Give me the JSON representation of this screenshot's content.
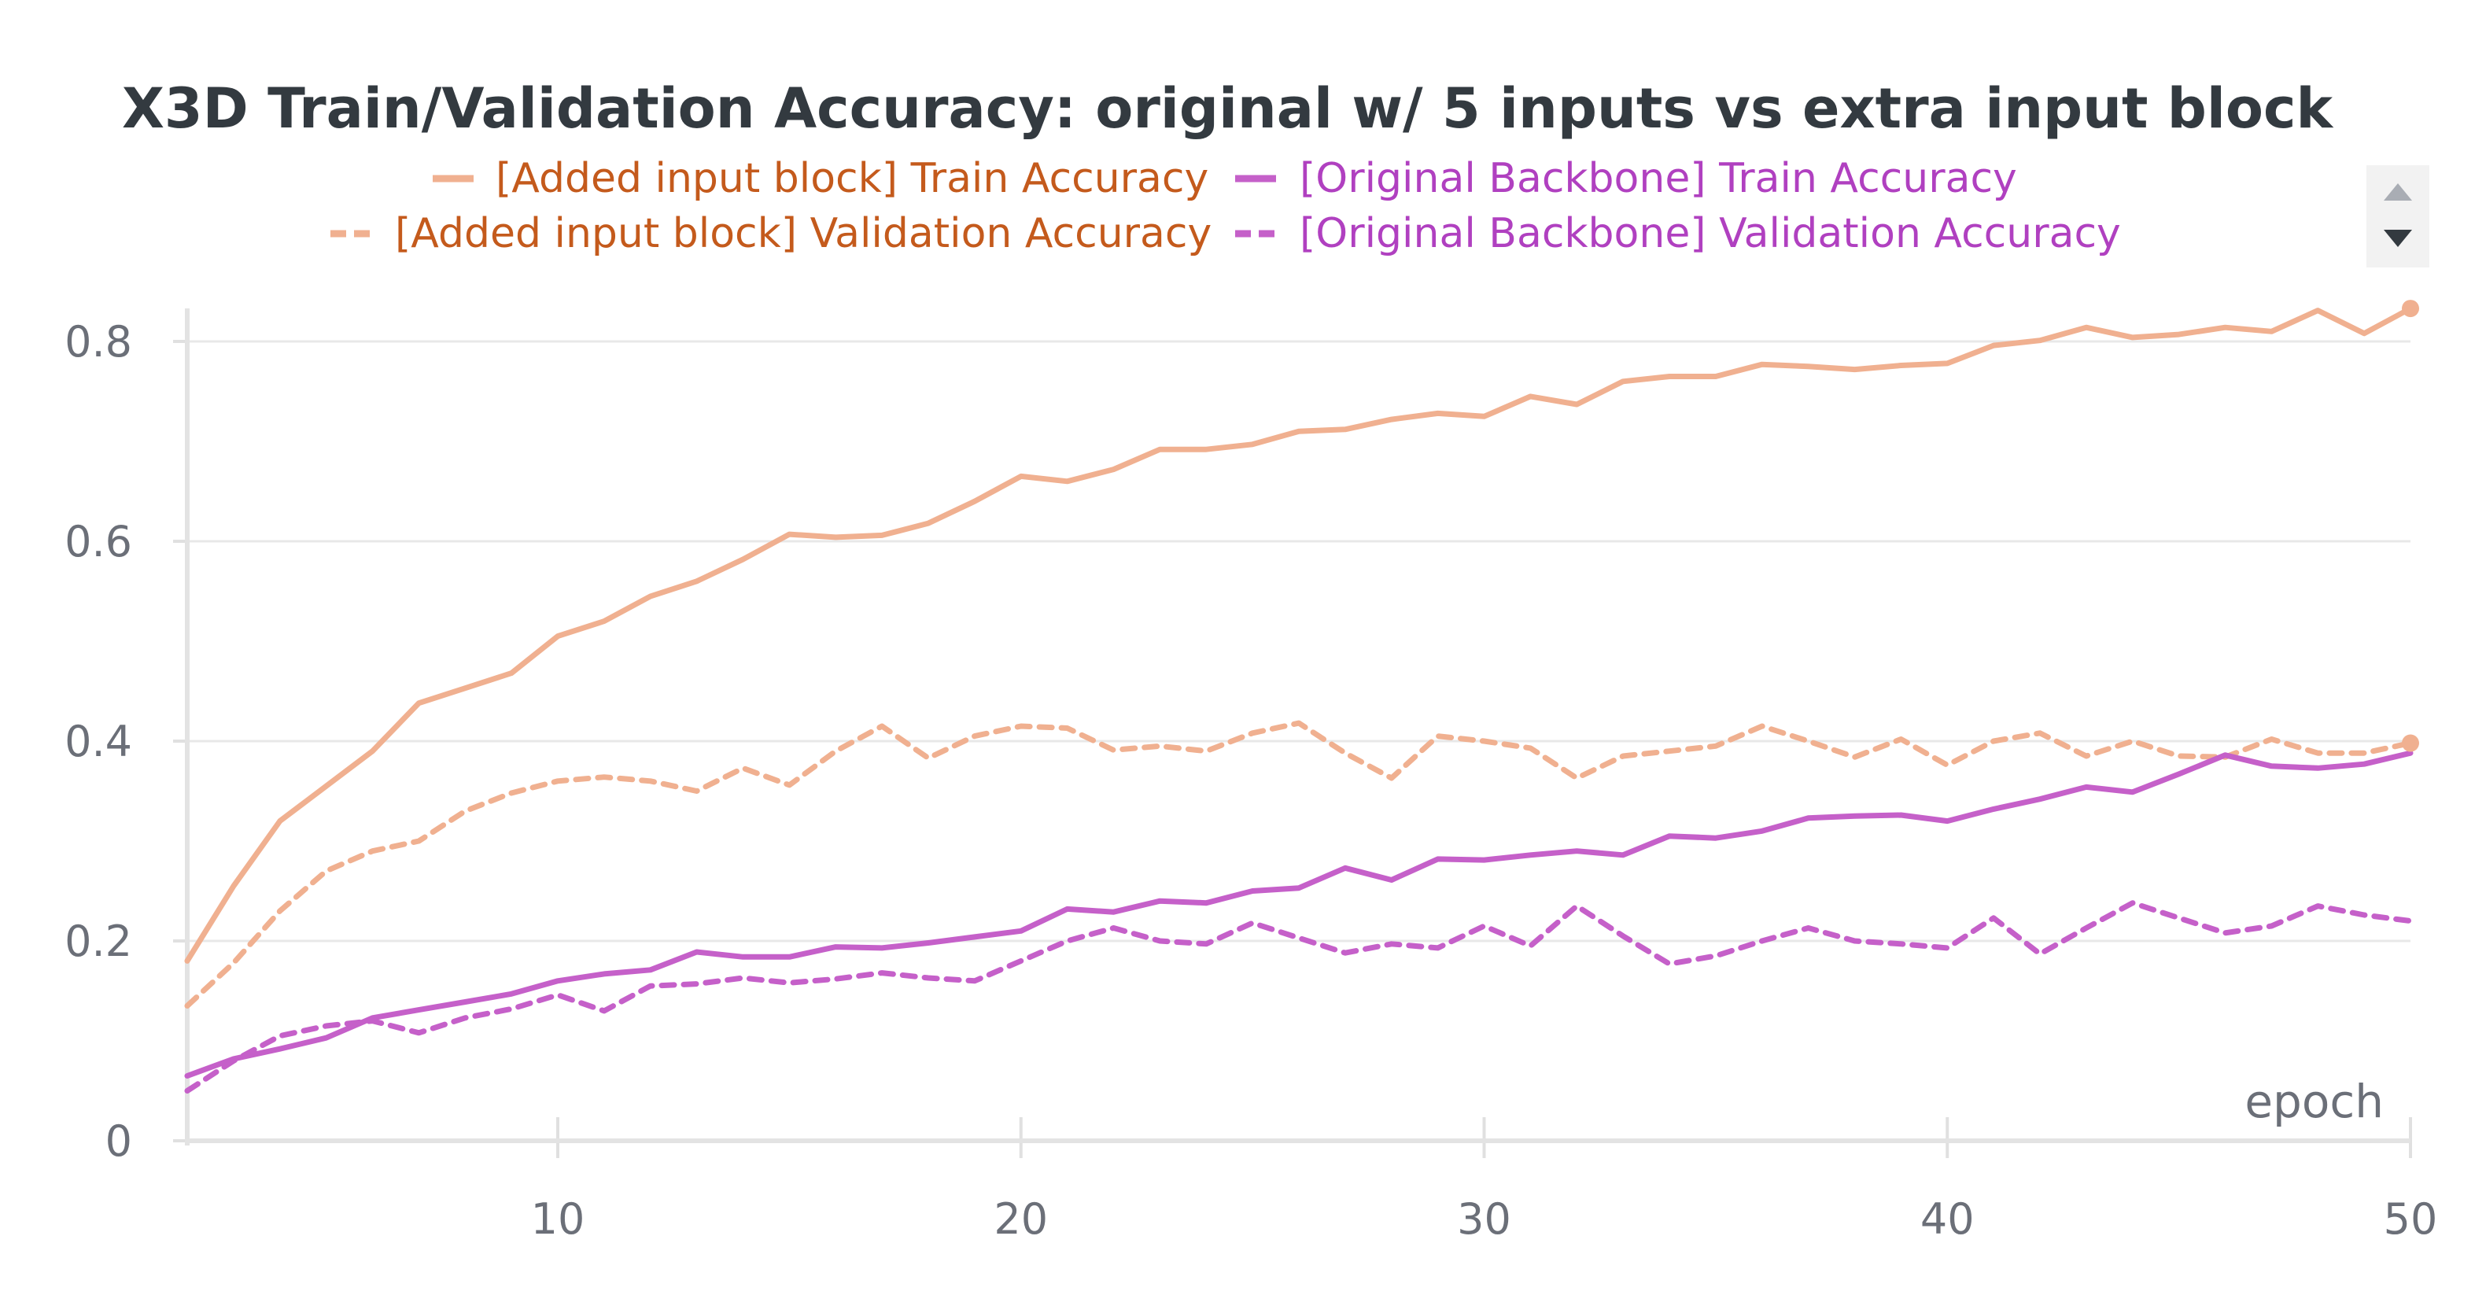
{
  "chart_data": {
    "type": "line",
    "title": "X3D Train/Validation Accuracy: original w/ 5 inputs vs extra input block",
    "xlabel": "epoch",
    "ylabel": "",
    "xlim": [
      2,
      50
    ],
    "ylim": [
      0,
      0.8
    ],
    "x_ticks": [
      "10",
      "20",
      "30",
      "40",
      "50"
    ],
    "y_ticks": [
      "0",
      "0.2",
      "0.4",
      "0.6",
      "0.8"
    ],
    "grid": true,
    "legend_position": "top",
    "x": [
      2,
      3,
      4,
      5,
      6,
      7,
      8,
      9,
      10,
      11,
      12,
      13,
      14,
      15,
      16,
      17,
      18,
      19,
      20,
      21,
      22,
      23,
      24,
      25,
      26,
      27,
      28,
      29,
      30,
      31,
      32,
      33,
      34,
      35,
      36,
      37,
      38,
      39,
      40,
      41,
      42,
      43,
      44,
      45,
      46,
      47,
      48,
      49,
      50
    ],
    "series": [
      {
        "name": "[Added input block] Train Accuracy",
        "color": "#f0b090",
        "text_color": "#c45a1c",
        "dash": false,
        "values": [
          0.18,
          0.255,
          0.32,
          0.355,
          0.39,
          0.438,
          0.453,
          0.468,
          0.505,
          0.52,
          0.545,
          0.56,
          0.582,
          0.607,
          0.604,
          0.606,
          0.618,
          0.64,
          0.665,
          0.66,
          0.672,
          0.692,
          0.692,
          0.697,
          0.71,
          0.712,
          0.722,
          0.728,
          0.725,
          0.745,
          0.737,
          0.76,
          0.765,
          0.765,
          0.777,
          0.775,
          0.772,
          0.776,
          0.778,
          0.796,
          0.801,
          0.814,
          0.804,
          0.807,
          0.814,
          0.81,
          0.831,
          0.808,
          0.833
        ]
      },
      {
        "name": "[Added input block] Validation Accuracy",
        "color": "#f0b090",
        "text_color": "#c45a1c",
        "dash": true,
        "values": [
          0.135,
          0.178,
          0.23,
          0.27,
          0.29,
          0.3,
          0.33,
          0.348,
          0.36,
          0.364,
          0.36,
          0.35,
          0.373,
          0.356,
          0.39,
          0.415,
          0.383,
          0.405,
          0.415,
          0.413,
          0.391,
          0.395,
          0.39,
          0.408,
          0.418,
          0.388,
          0.363,
          0.405,
          0.4,
          0.393,
          0.363,
          0.385,
          0.39,
          0.395,
          0.415,
          0.4,
          0.384,
          0.402,
          0.376,
          0.4,
          0.408,
          0.385,
          0.4,
          0.385,
          0.384,
          0.402,
          0.388,
          0.388,
          0.398
        ]
      },
      {
        "name": "[Original Backbone] Train Accuracy",
        "color": "#c560c9",
        "text_color": "#b040c0",
        "dash": false,
        "values": [
          0.065,
          0.082,
          0.092,
          0.103,
          0.123,
          0.131,
          0.139,
          0.147,
          0.16,
          0.167,
          0.171,
          0.189,
          0.184,
          0.184,
          0.194,
          0.193,
          0.198,
          0.204,
          0.21,
          0.232,
          0.229,
          0.24,
          0.238,
          0.25,
          0.253,
          0.273,
          0.261,
          0.282,
          0.281,
          0.286,
          0.29,
          0.286,
          0.305,
          0.303,
          0.31,
          0.323,
          0.325,
          0.326,
          0.32,
          0.332,
          0.342,
          0.354,
          0.349,
          0.367,
          0.386,
          0.375,
          0.373,
          0.377,
          0.388
        ]
      },
      {
        "name": "[Original Backbone] Validation Accuracy",
        "color": "#c560c9",
        "text_color": "#b040c0",
        "dash": true,
        "values": [
          0.05,
          0.08,
          0.105,
          0.115,
          0.12,
          0.108,
          0.123,
          0.132,
          0.146,
          0.13,
          0.155,
          0.157,
          0.163,
          0.158,
          0.162,
          0.168,
          0.163,
          0.16,
          0.18,
          0.2,
          0.213,
          0.2,
          0.197,
          0.218,
          0.203,
          0.188,
          0.197,
          0.193,
          0.215,
          0.195,
          0.235,
          0.205,
          0.177,
          0.185,
          0.2,
          0.213,
          0.2,
          0.197,
          0.193,
          0.223,
          0.187,
          0.213,
          0.238,
          0.223,
          0.208,
          0.215,
          0.235,
          0.226,
          0.22
        ]
      }
    ]
  }
}
